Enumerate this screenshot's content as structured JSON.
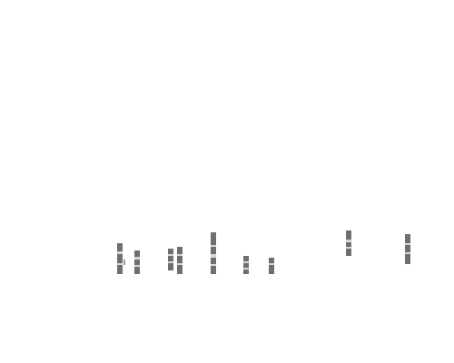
{
  "canvas": {
    "background": "#ffffff"
  },
  "marks": {
    "count": 10,
    "colors": {
      "dark": "#6f6f6f",
      "light": "#d6d6d6"
    }
  }
}
